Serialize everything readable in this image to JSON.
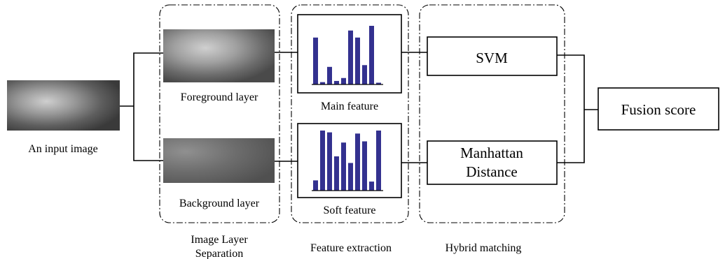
{
  "input": {
    "caption": "An input image"
  },
  "stages": {
    "separation": {
      "title_line1": "Image Layer",
      "title_line2": "Separation",
      "foreground_label": "Foreground layer",
      "background_label": "Background layer"
    },
    "extraction": {
      "title": "Feature extraction",
      "main_label": "Main feature",
      "soft_label": "Soft feature",
      "main_histogram": [
        0.8,
        0.04,
        0.3,
        0.06,
        0.11,
        0.92,
        0.8,
        0.33,
        1.0,
        0.03
      ],
      "soft_histogram": [
        0.17,
        1.0,
        0.97,
        0.57,
        0.8,
        0.46,
        0.95,
        0.82,
        0.15,
        1.0
      ],
      "bar_color": "#33318f"
    },
    "matching": {
      "title": "Hybrid matching",
      "svm_label": "SVM",
      "manhattan_line1": "Manhattan",
      "manhattan_line2": "Distance"
    }
  },
  "output": {
    "label": "Fusion score"
  }
}
